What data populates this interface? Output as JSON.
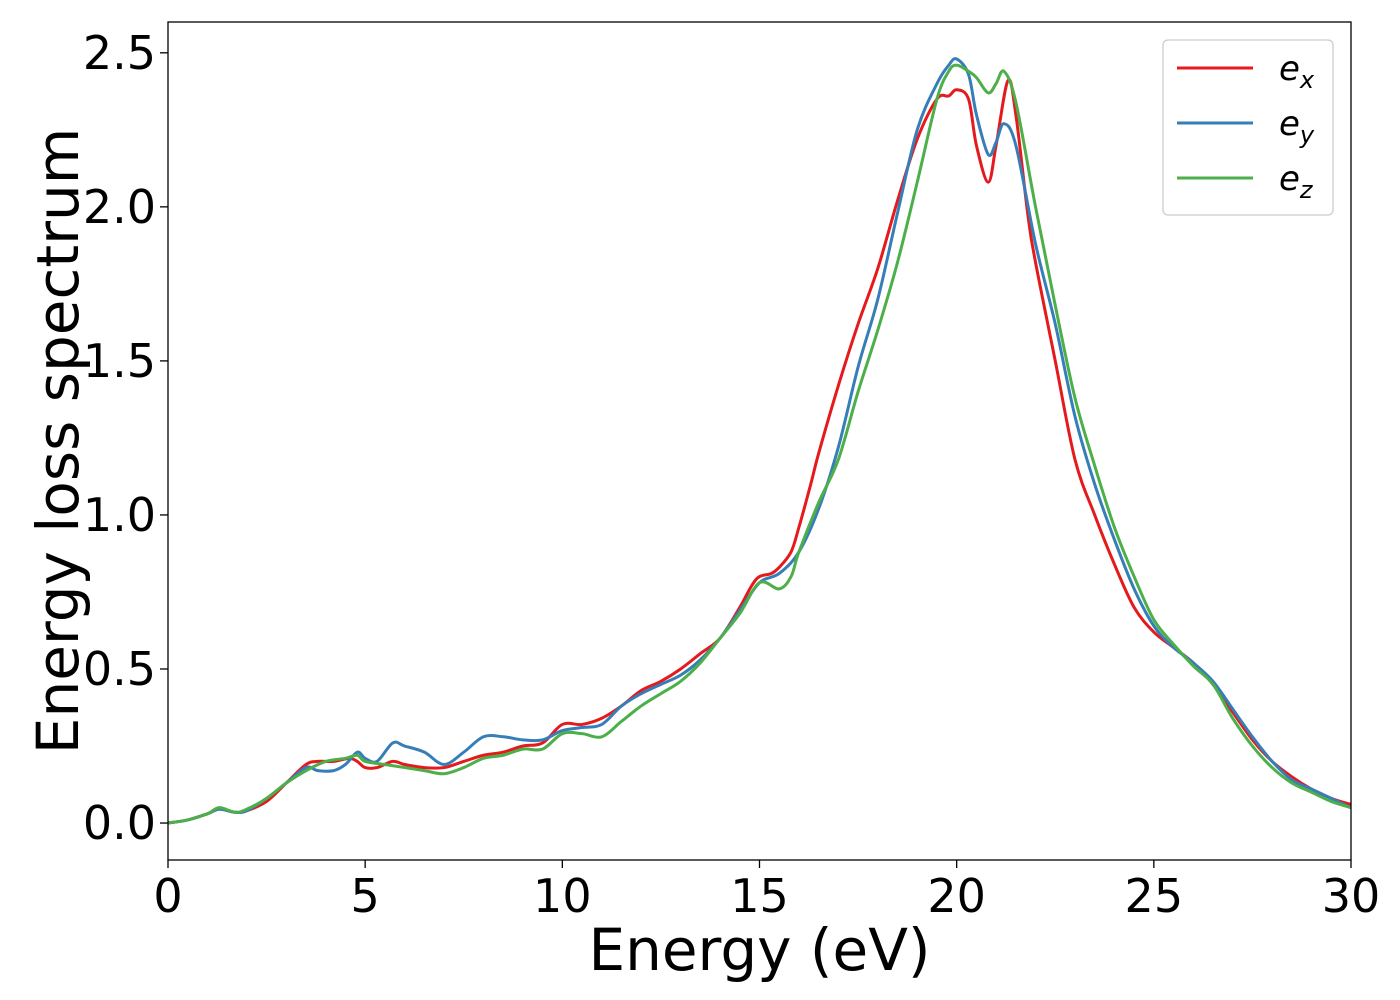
{
  "chart_data": {
    "type": "line",
    "title": "",
    "xlabel": "Energy (eV)",
    "ylabel": "Energy loss spectrum",
    "xlim": [
      0,
      30
    ],
    "ylim": [
      -0.12,
      2.6
    ],
    "xticks": [
      0,
      5,
      10,
      15,
      20,
      25,
      30
    ],
    "xtick_labels": [
      "0",
      "5",
      "10",
      "15",
      "20",
      "25",
      "30"
    ],
    "yticks": [
      0.0,
      0.5,
      1.0,
      1.5,
      2.0,
      2.5
    ],
    "ytick_labels": [
      "0.0",
      "0.5",
      "1.0",
      "1.5",
      "2.0",
      "2.5"
    ],
    "grid": false,
    "legend_position": "top-right",
    "series": [
      {
        "name": "e",
        "subscript": "x",
        "color": "#e41a1c",
        "x": [
          0,
          0.5,
          1.0,
          1.3,
          1.7,
          2.0,
          2.5,
          3.0,
          3.5,
          3.8,
          4.2,
          4.6,
          4.8,
          5.0,
          5.3,
          5.7,
          6.0,
          6.5,
          7.0,
          7.5,
          8.0,
          8.5,
          9.0,
          9.5,
          10.0,
          10.5,
          11.0,
          11.5,
          12.0,
          12.5,
          13.0,
          13.5,
          14.0,
          14.5,
          14.8,
          15.0,
          15.3,
          15.5,
          15.8,
          16.0,
          16.3,
          16.5,
          17.0,
          17.5,
          18.0,
          18.5,
          19.0,
          19.5,
          19.8,
          20.0,
          20.3,
          20.5,
          20.8,
          21.0,
          21.3,
          21.5,
          21.8,
          22.0,
          22.5,
          23.0,
          23.5,
          24.0,
          24.5,
          25.0,
          25.5,
          26.0,
          26.5,
          27.0,
          27.5,
          28.0,
          28.5,
          29.0,
          29.5,
          30.0
        ],
        "y": [
          0.0,
          0.01,
          0.03,
          0.045,
          0.035,
          0.04,
          0.07,
          0.13,
          0.19,
          0.2,
          0.2,
          0.21,
          0.2,
          0.18,
          0.18,
          0.2,
          0.19,
          0.18,
          0.18,
          0.2,
          0.22,
          0.23,
          0.25,
          0.26,
          0.32,
          0.32,
          0.34,
          0.38,
          0.43,
          0.46,
          0.5,
          0.55,
          0.6,
          0.7,
          0.77,
          0.8,
          0.81,
          0.83,
          0.88,
          0.96,
          1.1,
          1.2,
          1.42,
          1.62,
          1.8,
          2.02,
          2.22,
          2.35,
          2.36,
          2.38,
          2.35,
          2.2,
          2.08,
          2.2,
          2.41,
          2.3,
          1.98,
          1.82,
          1.5,
          1.18,
          1.0,
          0.84,
          0.7,
          0.62,
          0.57,
          0.52,
          0.45,
          0.36,
          0.27,
          0.2,
          0.15,
          0.11,
          0.08,
          0.06
        ]
      },
      {
        "name": "e",
        "subscript": "y",
        "color": "#377eb8",
        "x": [
          0,
          0.5,
          1.0,
          1.3,
          1.7,
          2.0,
          2.5,
          3.0,
          3.5,
          3.8,
          4.2,
          4.5,
          4.8,
          5.0,
          5.3,
          5.7,
          6.0,
          6.5,
          7.0,
          7.5,
          8.0,
          8.5,
          9.0,
          9.5,
          10.0,
          10.5,
          11.0,
          11.5,
          12.0,
          12.5,
          13.0,
          13.5,
          14.0,
          14.5,
          15.0,
          15.5,
          16.0,
          16.5,
          17.0,
          17.5,
          18.0,
          18.5,
          19.0,
          19.5,
          19.8,
          20.0,
          20.3,
          20.5,
          20.8,
          21.0,
          21.2,
          21.5,
          22.0,
          22.5,
          23.0,
          23.5,
          24.0,
          24.5,
          25.0,
          25.5,
          26.0,
          26.5,
          27.0,
          27.5,
          28.0,
          28.5,
          29.0,
          29.5,
          30.0
        ],
        "y": [
          0.0,
          0.01,
          0.03,
          0.045,
          0.035,
          0.04,
          0.08,
          0.13,
          0.18,
          0.17,
          0.17,
          0.19,
          0.23,
          0.21,
          0.2,
          0.26,
          0.25,
          0.23,
          0.19,
          0.23,
          0.28,
          0.28,
          0.27,
          0.27,
          0.3,
          0.31,
          0.32,
          0.38,
          0.42,
          0.45,
          0.48,
          0.53,
          0.6,
          0.69,
          0.78,
          0.81,
          0.88,
          1.02,
          1.22,
          1.48,
          1.7,
          1.98,
          2.25,
          2.4,
          2.46,
          2.48,
          2.43,
          2.3,
          2.17,
          2.21,
          2.27,
          2.2,
          1.88,
          1.62,
          1.32,
          1.1,
          0.92,
          0.76,
          0.64,
          0.57,
          0.52,
          0.46,
          0.37,
          0.28,
          0.2,
          0.14,
          0.11,
          0.08,
          0.05
        ]
      },
      {
        "name": "e",
        "subscript": "z",
        "color": "#4daf4a",
        "x": [
          0,
          0.5,
          1.0,
          1.3,
          1.7,
          2.0,
          2.5,
          3.0,
          3.5,
          4.0,
          4.5,
          4.8,
          5.0,
          5.5,
          6.0,
          6.5,
          7.0,
          7.5,
          8.0,
          8.5,
          9.0,
          9.5,
          10.0,
          10.5,
          11.0,
          11.5,
          12.0,
          12.5,
          13.0,
          13.5,
          14.0,
          14.5,
          15.0,
          15.5,
          15.8,
          16.0,
          16.5,
          17.0,
          17.5,
          18.0,
          18.5,
          19.0,
          19.5,
          19.8,
          20.0,
          20.3,
          20.5,
          20.8,
          21.0,
          21.2,
          21.5,
          22.0,
          22.5,
          23.0,
          23.5,
          24.0,
          24.5,
          25.0,
          25.5,
          26.0,
          26.5,
          27.0,
          27.5,
          28.0,
          28.5,
          29.0,
          29.5,
          30.0
        ],
        "y": [
          0.0,
          0.01,
          0.03,
          0.05,
          0.035,
          0.045,
          0.08,
          0.13,
          0.17,
          0.2,
          0.21,
          0.22,
          0.2,
          0.19,
          0.18,
          0.17,
          0.16,
          0.18,
          0.21,
          0.22,
          0.24,
          0.24,
          0.29,
          0.29,
          0.28,
          0.33,
          0.38,
          0.42,
          0.46,
          0.52,
          0.6,
          0.68,
          0.78,
          0.76,
          0.8,
          0.88,
          1.04,
          1.18,
          1.4,
          1.6,
          1.82,
          2.08,
          2.35,
          2.44,
          2.46,
          2.44,
          2.42,
          2.37,
          2.4,
          2.44,
          2.34,
          2.0,
          1.68,
          1.38,
          1.16,
          0.96,
          0.8,
          0.66,
          0.58,
          0.51,
          0.45,
          0.34,
          0.25,
          0.18,
          0.13,
          0.1,
          0.07,
          0.05
        ]
      }
    ]
  }
}
